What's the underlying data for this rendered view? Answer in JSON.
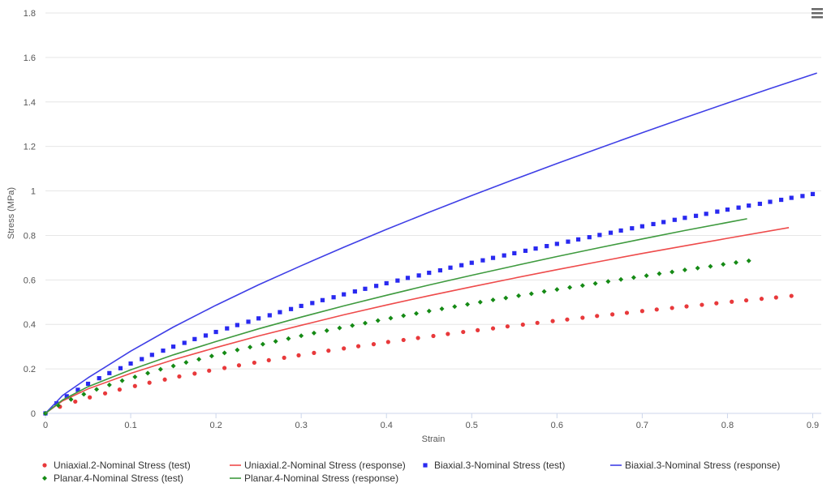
{
  "menu": {
    "icon": "hamburger-menu-icon"
  },
  "chart_data": {
    "type": "line",
    "xlabel": "Strain",
    "ylabel": "Stress (MPa)",
    "xlim": [
      0,
      0.91
    ],
    "ylim": [
      0,
      1.8
    ],
    "xticks": [
      0,
      0.1,
      0.2,
      0.3,
      0.4,
      0.5,
      0.6,
      0.7,
      0.8,
      0.9
    ],
    "xtick_labels": [
      "0",
      "0.1",
      "0.2",
      "0.3",
      "0.4",
      "0.5",
      "0.6",
      "0.7",
      "0.8",
      "0.9"
    ],
    "yticks": [
      0,
      0.2,
      0.4,
      0.6,
      0.8,
      1,
      1.2,
      1.4,
      1.6,
      1.8
    ],
    "ytick_labels": [
      "0",
      "0.2",
      "0.4",
      "0.6",
      "0.8",
      "1",
      "1.2",
      "1.4",
      "1.6",
      "1.8"
    ],
    "grid": true,
    "legend_position": "bottom",
    "series": [
      {
        "name": "Uniaxial.2-Nominal Stress (test)",
        "kind": "scatter",
        "marker": "circle",
        "color": "#e8393b",
        "x": [
          0,
          0.017,
          0.035,
          0.052,
          0.07,
          0.087,
          0.105,
          0.122,
          0.14,
          0.157,
          0.175,
          0.192,
          0.21,
          0.227,
          0.245,
          0.262,
          0.28,
          0.297,
          0.315,
          0.332,
          0.35,
          0.367,
          0.385,
          0.402,
          0.42,
          0.437,
          0.455,
          0.472,
          0.49,
          0.507,
          0.525,
          0.542,
          0.56,
          0.577,
          0.595,
          0.612,
          0.63,
          0.647,
          0.665,
          0.682,
          0.7,
          0.717,
          0.735,
          0.752,
          0.77,
          0.787,
          0.805,
          0.822,
          0.84,
          0.857,
          0.875
        ],
        "y": [
          0,
          0.03,
          0.053,
          0.072,
          0.09,
          0.107,
          0.123,
          0.138,
          0.152,
          0.166,
          0.179,
          0.192,
          0.204,
          0.216,
          0.228,
          0.239,
          0.25,
          0.261,
          0.272,
          0.282,
          0.292,
          0.302,
          0.311,
          0.321,
          0.33,
          0.339,
          0.348,
          0.357,
          0.366,
          0.374,
          0.382,
          0.391,
          0.399,
          0.407,
          0.415,
          0.422,
          0.43,
          0.438,
          0.445,
          0.452,
          0.46,
          0.467,
          0.474,
          0.481,
          0.488,
          0.495,
          0.502,
          0.508,
          0.515,
          0.521,
          0.528
        ]
      },
      {
        "name": "Uniaxial.2-Nominal Stress (response)",
        "kind": "line",
        "color": "#ee4b4b",
        "x": [
          0,
          0.02,
          0.05,
          0.1,
          0.15,
          0.2,
          0.25,
          0.3,
          0.35,
          0.4,
          0.45,
          0.5,
          0.55,
          0.6,
          0.65,
          0.7,
          0.75,
          0.8,
          0.872
        ],
        "y": [
          0,
          0.056,
          0.11,
          0.18,
          0.241,
          0.296,
          0.348,
          0.396,
          0.443,
          0.487,
          0.529,
          0.569,
          0.608,
          0.646,
          0.683,
          0.719,
          0.753,
          0.787,
          0.835
        ]
      },
      {
        "name": "Biaxial.3-Nominal Stress (test)",
        "kind": "scatter",
        "marker": "square",
        "color": "#2929f0",
        "x": [
          0,
          0.013,
          0.025,
          0.038,
          0.05,
          0.063,
          0.075,
          0.088,
          0.1,
          0.113,
          0.125,
          0.138,
          0.15,
          0.163,
          0.175,
          0.188,
          0.2,
          0.213,
          0.225,
          0.238,
          0.25,
          0.263,
          0.275,
          0.288,
          0.3,
          0.313,
          0.325,
          0.338,
          0.35,
          0.363,
          0.375,
          0.388,
          0.4,
          0.413,
          0.425,
          0.438,
          0.45,
          0.463,
          0.475,
          0.488,
          0.5,
          0.513,
          0.525,
          0.538,
          0.55,
          0.563,
          0.575,
          0.588,
          0.6,
          0.613,
          0.625,
          0.638,
          0.65,
          0.663,
          0.675,
          0.688,
          0.7,
          0.713,
          0.725,
          0.738,
          0.75,
          0.763,
          0.775,
          0.788,
          0.8,
          0.813,
          0.825,
          0.838,
          0.85,
          0.863,
          0.875,
          0.888,
          0.9
        ],
        "y": [
          0,
          0.045,
          0.077,
          0.106,
          0.133,
          0.158,
          0.181,
          0.203,
          0.224,
          0.244,
          0.263,
          0.282,
          0.3,
          0.317,
          0.334,
          0.35,
          0.366,
          0.382,
          0.397,
          0.412,
          0.427,
          0.441,
          0.455,
          0.469,
          0.483,
          0.496,
          0.509,
          0.522,
          0.535,
          0.548,
          0.56,
          0.573,
          0.585,
          0.597,
          0.609,
          0.62,
          0.632,
          0.643,
          0.655,
          0.666,
          0.677,
          0.688,
          0.699,
          0.71,
          0.72,
          0.731,
          0.741,
          0.752,
          0.762,
          0.772,
          0.782,
          0.792,
          0.802,
          0.812,
          0.822,
          0.832,
          0.841,
          0.851,
          0.86,
          0.87,
          0.879,
          0.888,
          0.897,
          0.907,
          0.916,
          0.925,
          0.934,
          0.942,
          0.951,
          0.96,
          0.969,
          0.977,
          0.986
        ]
      },
      {
        "name": "Biaxial.3-Nominal Stress (response)",
        "kind": "line",
        "color": "#3f3fe6",
        "x": [
          0,
          0.02,
          0.05,
          0.1,
          0.15,
          0.2,
          0.25,
          0.3,
          0.35,
          0.4,
          0.45,
          0.5,
          0.55,
          0.6,
          0.65,
          0.7,
          0.75,
          0.8,
          0.85,
          0.905
        ],
        "y": [
          0,
          0.08,
          0.16,
          0.28,
          0.388,
          0.486,
          0.578,
          0.664,
          0.747,
          0.827,
          0.904,
          0.979,
          1.052,
          1.123,
          1.193,
          1.262,
          1.329,
          1.395,
          1.46,
          1.53
        ]
      },
      {
        "name": "Planar.4-Nominal Stress (test)",
        "kind": "scatter",
        "marker": "diamond",
        "color": "#158a15",
        "x": [
          0,
          0.015,
          0.03,
          0.045,
          0.06,
          0.075,
          0.09,
          0.105,
          0.12,
          0.135,
          0.15,
          0.165,
          0.18,
          0.195,
          0.21,
          0.225,
          0.24,
          0.255,
          0.27,
          0.285,
          0.3,
          0.315,
          0.33,
          0.345,
          0.36,
          0.375,
          0.39,
          0.405,
          0.42,
          0.435,
          0.45,
          0.465,
          0.48,
          0.495,
          0.51,
          0.525,
          0.54,
          0.555,
          0.57,
          0.585,
          0.6,
          0.615,
          0.63,
          0.645,
          0.66,
          0.675,
          0.69,
          0.705,
          0.72,
          0.735,
          0.75,
          0.765,
          0.78,
          0.795,
          0.81,
          0.825
        ],
        "y": [
          0,
          0.036,
          0.063,
          0.086,
          0.108,
          0.128,
          0.147,
          0.164,
          0.181,
          0.198,
          0.213,
          0.229,
          0.243,
          0.258,
          0.272,
          0.285,
          0.298,
          0.311,
          0.324,
          0.336,
          0.349,
          0.361,
          0.372,
          0.384,
          0.395,
          0.406,
          0.417,
          0.428,
          0.439,
          0.449,
          0.46,
          0.47,
          0.48,
          0.49,
          0.5,
          0.51,
          0.519,
          0.529,
          0.538,
          0.548,
          0.557,
          0.566,
          0.575,
          0.584,
          0.593,
          0.602,
          0.611,
          0.619,
          0.628,
          0.636,
          0.645,
          0.653,
          0.661,
          0.67,
          0.678,
          0.686
        ]
      },
      {
        "name": "Planar.4-Nominal Stress (response)",
        "kind": "line",
        "color": "#3e9a3e",
        "x": [
          0,
          0.02,
          0.05,
          0.1,
          0.15,
          0.2,
          0.25,
          0.3,
          0.35,
          0.4,
          0.45,
          0.5,
          0.55,
          0.6,
          0.65,
          0.7,
          0.75,
          0.823
        ],
        "y": [
          0,
          0.06,
          0.12,
          0.196,
          0.263,
          0.323,
          0.38,
          0.433,
          0.483,
          0.531,
          0.577,
          0.621,
          0.663,
          0.705,
          0.745,
          0.784,
          0.822,
          0.875
        ]
      }
    ]
  }
}
